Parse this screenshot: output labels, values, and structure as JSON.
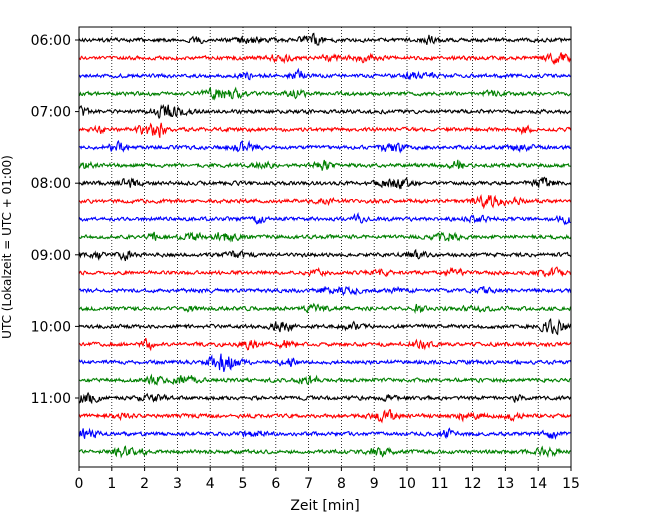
{
  "chart_data": {
    "type": "line",
    "title": "",
    "xlabel": "Zeit  [min]",
    "ylabel": "UTC (Lokalzeit = UTC + 01:00)",
    "xlim": [
      0,
      15
    ],
    "x_ticks": [
      0,
      1,
      2,
      3,
      4,
      5,
      6,
      7,
      8,
      9,
      10,
      11,
      12,
      13,
      14,
      15
    ],
    "x_tick_labels": [
      "0",
      "1",
      "2",
      "3",
      "4",
      "5",
      "6",
      "7",
      "8",
      "9",
      "10",
      "11",
      "12",
      "13",
      "14",
      "15"
    ],
    "y_tick_labels": [
      "06:00",
      "07:00",
      "08:00",
      "09:00",
      "10:00",
      "11:00"
    ],
    "x_grid": true,
    "x_grid_style": "dotted",
    "color_cycle": [
      "#000000",
      "#ff0000",
      "#0000ff",
      "#008000"
    ],
    "traces": [
      {
        "start": "06:00",
        "color": "#000000"
      },
      {
        "start": "06:15",
        "color": "#ff0000"
      },
      {
        "start": "06:30",
        "color": "#0000ff"
      },
      {
        "start": "06:45",
        "color": "#008000"
      },
      {
        "start": "07:00",
        "color": "#000000"
      },
      {
        "start": "07:15",
        "color": "#ff0000"
      },
      {
        "start": "07:30",
        "color": "#0000ff"
      },
      {
        "start": "07:45",
        "color": "#008000"
      },
      {
        "start": "08:00",
        "color": "#000000"
      },
      {
        "start": "08:15",
        "color": "#ff0000"
      },
      {
        "start": "08:30",
        "color": "#0000ff"
      },
      {
        "start": "08:45",
        "color": "#008000"
      },
      {
        "start": "09:00",
        "color": "#000000"
      },
      {
        "start": "09:15",
        "color": "#ff0000"
      },
      {
        "start": "09:30",
        "color": "#0000ff"
      },
      {
        "start": "09:45",
        "color": "#008000"
      },
      {
        "start": "10:00",
        "color": "#000000"
      },
      {
        "start": "10:15",
        "color": "#ff0000"
      },
      {
        "start": "10:30",
        "color": "#0000ff"
      },
      {
        "start": "10:45",
        "color": "#008000"
      },
      {
        "start": "11:00",
        "color": "#000000"
      },
      {
        "start": "11:15",
        "color": "#ff0000"
      },
      {
        "start": "11:30",
        "color": "#0000ff"
      },
      {
        "start": "11:45",
        "color": "#008000"
      }
    ]
  }
}
